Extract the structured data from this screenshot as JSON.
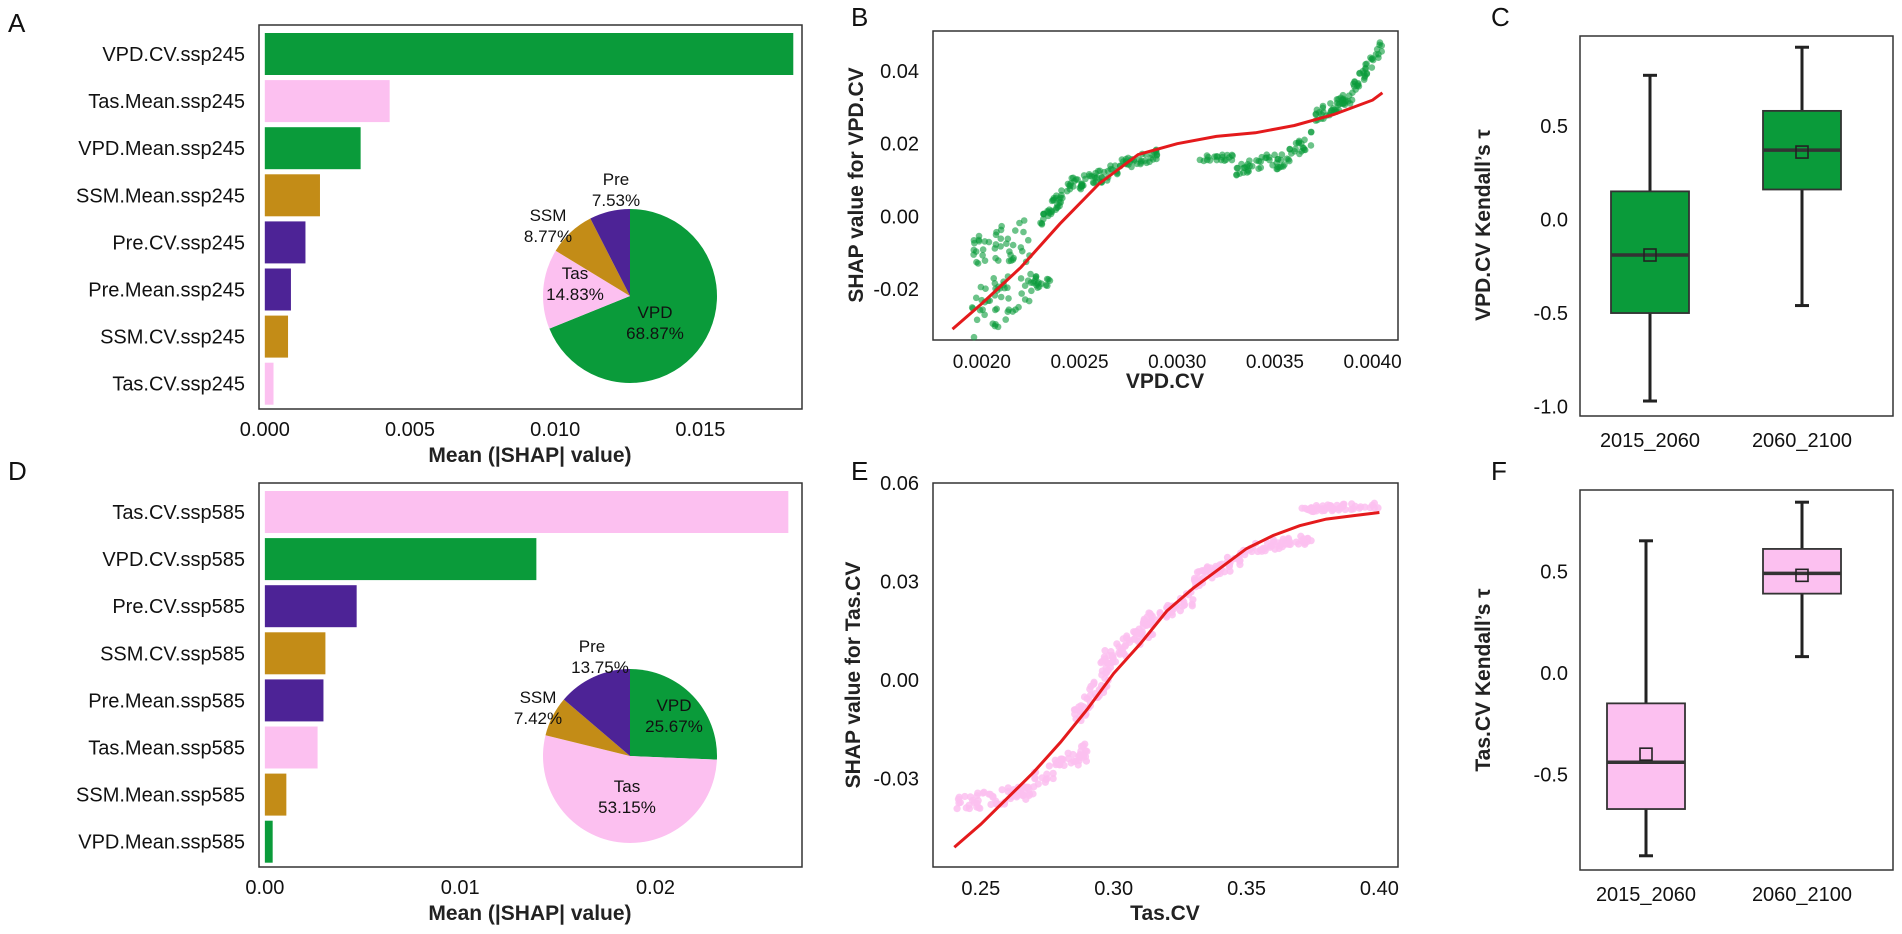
{
  "colors": {
    "VPD": "#0a9b3a",
    "Tas": "#fcc0f0",
    "SSM": "#c38c17",
    "Pre": "#4d2396",
    "fit": "#e41a1c",
    "frame": "#333333"
  },
  "chart_data": [
    {
      "panel": "A",
      "type": "bar",
      "orientation": "horizontal",
      "xlabel": "Mean (|SHAP| value)",
      "xlim": [
        -0.0002,
        0.0185
      ],
      "xticks": [
        "0.000",
        "0.005",
        "0.010",
        "0.015"
      ],
      "xtick_values": [
        0,
        0.005,
        0.01,
        0.015
      ],
      "categories": [
        "VPD.CV.ssp245",
        "Tas.Mean.ssp245",
        "VPD.Mean.ssp245",
        "SSM.Mean.ssp245",
        "Pre.CV.ssp245",
        "Pre.Mean.ssp245",
        "SSM.CV.ssp245",
        "Tas.CV.ssp245"
      ],
      "groups": [
        "VPD",
        "Tas",
        "VPD",
        "SSM",
        "Pre",
        "Pre",
        "SSM",
        "Tas"
      ],
      "values": [
        0.0182,
        0.0043,
        0.0033,
        0.0019,
        0.0014,
        0.0009,
        0.0008,
        0.0003
      ],
      "inset_pie": {
        "labels": [
          "VPD",
          "Tas",
          "SSM",
          "Pre"
        ],
        "values": [
          68.87,
          14.83,
          8.77,
          7.53
        ],
        "texts": [
          "68.87%",
          "14.83%",
          "8.77%",
          "7.53%"
        ]
      }
    },
    {
      "panel": "B",
      "type": "scatter",
      "xlabel": "VPD.CV",
      "ylabel": "SHAP value for VPD.CV",
      "xlim": [
        0.00175,
        0.00413
      ],
      "ylim": [
        -0.034,
        0.051
      ],
      "xticks": [
        "0.0020",
        "0.0025",
        "0.0030",
        "0.0035",
        "0.0040"
      ],
      "xtick_values": [
        0.002,
        0.0025,
        0.003,
        0.0035,
        0.004
      ],
      "yticks": [
        "0.04",
        "0.02",
        "0.00",
        "-0.02"
      ],
      "ytick_values": [
        0.04,
        0.02,
        0,
        -0.02
      ],
      "point_group": "VPD",
      "clusters": [
        [
          0.00195,
          0.00225,
          -0.02,
          -0.012,
          0.028,
          90
        ],
        [
          0.00225,
          0.00235,
          -0.019,
          -0.017,
          0.004,
          18
        ],
        [
          0.0023,
          0.0025,
          -0.001,
          0.011,
          0.004,
          45
        ],
        [
          0.0025,
          0.0027,
          0.009,
          0.013,
          0.004,
          40
        ],
        [
          0.0027,
          0.0029,
          0.014,
          0.017,
          0.003,
          35
        ],
        [
          0.0031,
          0.0033,
          0.016,
          0.016,
          0.002,
          20
        ],
        [
          0.0033,
          0.0035,
          0.013,
          0.016,
          0.004,
          30
        ],
        [
          0.0035,
          0.0037,
          0.014,
          0.022,
          0.004,
          35
        ],
        [
          0.0037,
          0.0039,
          0.027,
          0.033,
          0.004,
          45
        ],
        [
          0.0039,
          0.00405,
          0.035,
          0.047,
          0.004,
          35
        ]
      ],
      "fit_curve": {
        "x": [
          0.00185,
          0.002,
          0.0022,
          0.0024,
          0.0026,
          0.0028,
          0.003,
          0.0032,
          0.0034,
          0.0036,
          0.0038,
          0.004,
          0.00405
        ],
        "y": [
          -0.031,
          -0.024,
          -0.014,
          -0.002,
          0.009,
          0.017,
          0.02,
          0.022,
          0.023,
          0.025,
          0.028,
          0.032,
          0.034
        ]
      }
    },
    {
      "panel": "C",
      "type": "box",
      "ylabel": "VPD.CV Kendall’s τ",
      "ylim": [
        -1.05,
        0.98
      ],
      "yticks": [
        "0.5",
        "0.0",
        "-0.5",
        "-1.0"
      ],
      "ytick_values": [
        0.5,
        0.0,
        -0.5,
        -1.0
      ],
      "categories": [
        "2015_2060",
        "2060_2100"
      ],
      "group": "VPD",
      "boxes": [
        {
          "min": -0.97,
          "q1": -0.5,
          "median": -0.19,
          "q3": 0.15,
          "max": 0.77,
          "mean": -0.19
        },
        {
          "min": -0.46,
          "q1": 0.16,
          "median": 0.37,
          "q3": 0.58,
          "max": 0.92,
          "mean": 0.36
        }
      ]
    },
    {
      "panel": "D",
      "type": "bar",
      "orientation": "horizontal",
      "xlabel": "Mean (|SHAP| value)",
      "xlim": [
        -0.0003,
        0.0275
      ],
      "xticks": [
        "0.00",
        "0.01",
        "0.02"
      ],
      "xtick_values": [
        0,
        0.01,
        0.02
      ],
      "categories": [
        "Tas.CV.ssp585",
        "VPD.CV.ssp585",
        "Pre.CV.ssp585",
        "SSM.CV.ssp585",
        "Pre.Mean.ssp585",
        "Tas.Mean.ssp585",
        "SSM.Mean.ssp585",
        "VPD.Mean.ssp585"
      ],
      "groups": [
        "Tas",
        "VPD",
        "Pre",
        "SSM",
        "Pre",
        "Tas",
        "SSM",
        "VPD"
      ],
      "values": [
        0.0268,
        0.0139,
        0.0047,
        0.0031,
        0.003,
        0.0027,
        0.0011,
        0.0004
      ],
      "inset_pie": {
        "labels": [
          "VPD",
          "Tas",
          "SSM",
          "Pre"
        ],
        "values": [
          25.67,
          53.15,
          7.42,
          13.75
        ],
        "texts": [
          "25.67%",
          "53.15%",
          "7.42%",
          "13.75%"
        ]
      }
    },
    {
      "panel": "E",
      "type": "scatter",
      "xlabel": "Tas.CV",
      "ylabel": "SHAP value for Tas.CV",
      "xlim": [
        0.232,
        0.407
      ],
      "ylim": [
        -0.057,
        0.06
      ],
      "xticks": [
        "0.25",
        "0.30",
        "0.35",
        "0.40"
      ],
      "xtick_values": [
        0.25,
        0.3,
        0.35,
        0.4
      ],
      "yticks": [
        "0.06",
        "0.03",
        "0.00",
        "-0.03"
      ],
      "ytick_values": [
        0.06,
        0.03,
        0.0,
        -0.03
      ],
      "point_group": "Tas",
      "clusters": [
        [
          0.24,
          0.27,
          -0.038,
          -0.034,
          0.005,
          60
        ],
        [
          0.27,
          0.29,
          -0.03,
          -0.022,
          0.006,
          50
        ],
        [
          0.285,
          0.3,
          -0.012,
          0.004,
          0.008,
          45
        ],
        [
          0.295,
          0.315,
          0.005,
          0.016,
          0.006,
          50
        ],
        [
          0.31,
          0.33,
          0.018,
          0.025,
          0.005,
          45
        ],
        [
          0.33,
          0.35,
          0.03,
          0.038,
          0.005,
          50
        ],
        [
          0.35,
          0.375,
          0.04,
          0.043,
          0.003,
          45
        ],
        [
          0.37,
          0.4,
          0.052,
          0.053,
          0.002,
          50
        ]
      ],
      "fit_curve": {
        "x": [
          0.24,
          0.25,
          0.26,
          0.27,
          0.28,
          0.29,
          0.3,
          0.31,
          0.32,
          0.33,
          0.34,
          0.35,
          0.36,
          0.37,
          0.38,
          0.39,
          0.4
        ],
        "y": [
          -0.051,
          -0.044,
          -0.036,
          -0.028,
          -0.019,
          -0.009,
          0.002,
          0.011,
          0.021,
          0.028,
          0.034,
          0.04,
          0.044,
          0.047,
          0.049,
          0.05,
          0.051
        ]
      }
    },
    {
      "panel": "F",
      "type": "box",
      "ylabel": "Tas.CV Kendall’s τ",
      "ylim": [
        -0.97,
        0.9
      ],
      "yticks": [
        "0.5",
        "0.0",
        "-0.5"
      ],
      "ytick_values": [
        0.5,
        0.0,
        -0.5
      ],
      "categories": [
        "2015_2060",
        "2060_2100"
      ],
      "group": "Tas",
      "boxes": [
        {
          "min": -0.9,
          "q1": -0.67,
          "median": -0.44,
          "q3": -0.15,
          "max": 0.65,
          "mean": -0.4
        },
        {
          "min": 0.08,
          "q1": 0.39,
          "median": 0.49,
          "q3": 0.61,
          "max": 0.84,
          "mean": 0.48
        }
      ]
    }
  ]
}
